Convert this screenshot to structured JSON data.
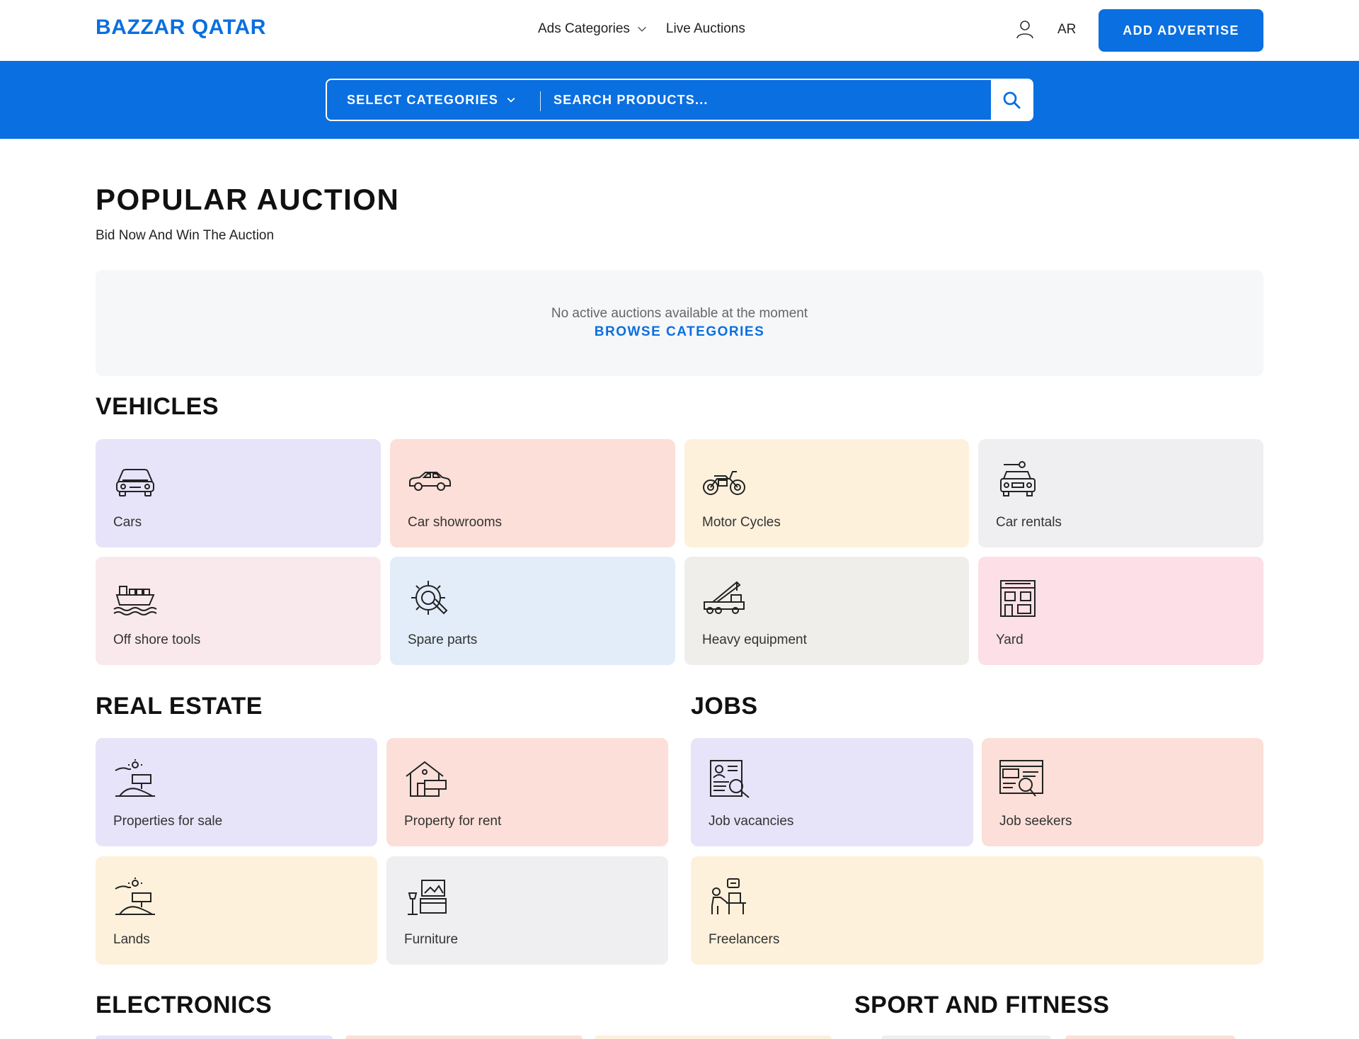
{
  "header": {
    "logo": "BAZZAR QATAR",
    "nav": [
      {
        "label": "Ads Categories",
        "icon": "chevron-down-icon"
      },
      {
        "label": "Live Auctions"
      }
    ],
    "lang": "AR",
    "add_button": "ADD ADVERTISE"
  },
  "search": {
    "select_label": "SELECT CATEGORIES",
    "placeholder": "SEARCH PRODUCTS..."
  },
  "popular": {
    "title": "POPULAR AUCTION",
    "subtitle": "Bid Now And Win The Auction",
    "empty_message": "No active auctions available at the moment",
    "browse_link": "BROWSE CATEGORIES"
  },
  "vehicles": {
    "title": "VEHICLES",
    "items": [
      {
        "label": "Cars",
        "icon": "car-icon",
        "color": "#e7e3f9"
      },
      {
        "label": "Car showrooms",
        "icon": "sedan-icon",
        "color": "#fcdfd8"
      },
      {
        "label": "Motor Cycles",
        "icon": "motorcycle-icon",
        "color": "#fdf1dc"
      },
      {
        "label": "Car rentals",
        "icon": "car-key-icon",
        "color": "#efeff1"
      },
      {
        "label": "Off shore tools",
        "icon": "ship-icon",
        "color": "#fae9ec"
      },
      {
        "label": "Spare parts",
        "icon": "gear-wrench-icon",
        "color": "#e2edf9"
      },
      {
        "label": "Heavy equipment",
        "icon": "crane-truck-icon",
        "color": "#efeeea"
      },
      {
        "label": "Yard",
        "icon": "garage-icon",
        "color": "#fcdfe7"
      }
    ]
  },
  "real_estate": {
    "title": "REAL ESTATE",
    "items": [
      {
        "label": "Properties for sale",
        "icon": "sale-sign-icon",
        "color": "#e7e3f9"
      },
      {
        "label": "Property for rent",
        "icon": "house-rent-icon",
        "color": "#fcdfd8"
      },
      {
        "label": "Lands",
        "icon": "land-sale-icon",
        "color": "#fdf1dc"
      },
      {
        "label": "Furniture",
        "icon": "furniture-icon",
        "color": "#efeff1"
      }
    ]
  },
  "jobs": {
    "title": "JOBS",
    "items": [
      {
        "label": "Job vacancies",
        "icon": "resume-search-icon",
        "color": "#e7e3f9"
      },
      {
        "label": "Job seekers",
        "icon": "job-search-icon",
        "color": "#fcdfd8"
      },
      {
        "label": "Freelancers",
        "icon": "freelancer-icon",
        "color": "#fdf1dc"
      }
    ]
  },
  "electronics": {
    "title": "ELECTRONICS"
  },
  "sport": {
    "title": "SPORT AND FITNESS"
  }
}
